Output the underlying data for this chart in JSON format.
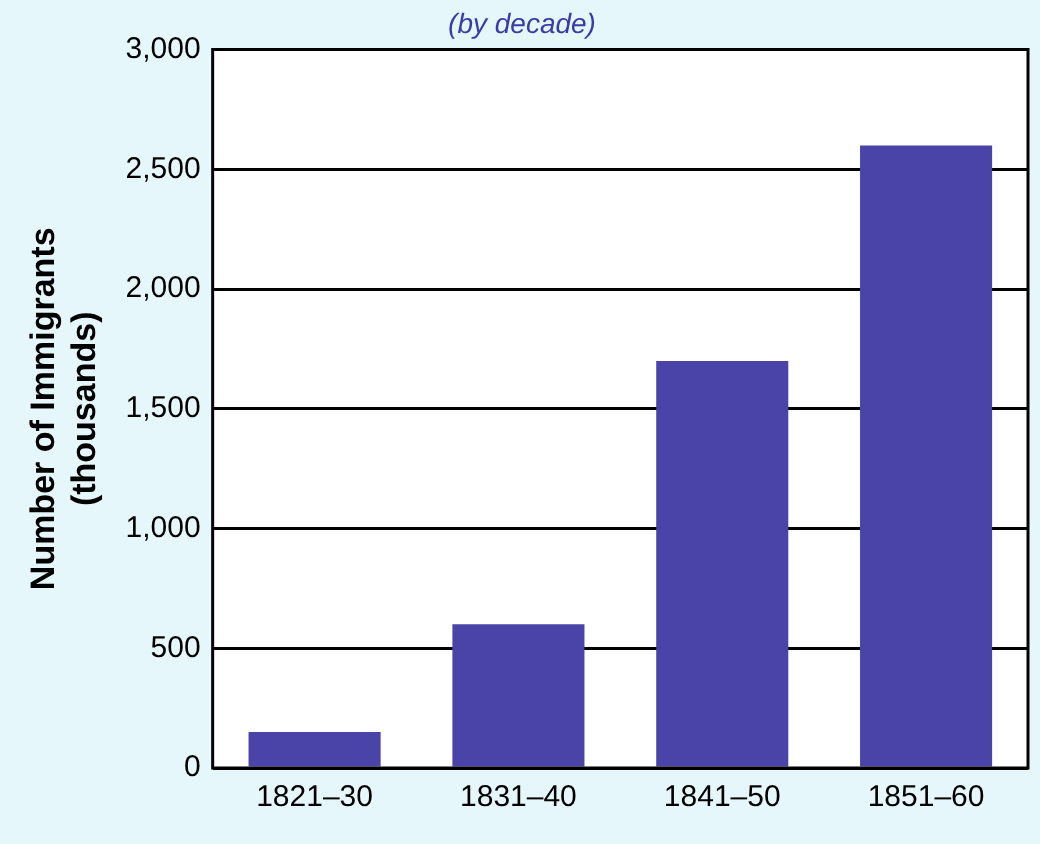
{
  "chart_data": {
    "type": "bar",
    "subtitle": "(by decade)",
    "ylabel": "Number of Immigrants\n(thousands)",
    "categories": [
      "1821–30",
      "1831–40",
      "1841–50",
      "1851–60"
    ],
    "values": [
      150,
      600,
      1700,
      2600
    ],
    "color": "#4a44a8",
    "ylim": [
      0,
      3000
    ],
    "yticks": [
      0,
      500,
      {
        "value": 1000,
        "label": "1,000"
      },
      {
        "value": 1500,
        "label": "1,500"
      },
      {
        "value": 2000,
        "label": "2,000"
      },
      {
        "value": 2500,
        "label": "2,500"
      },
      {
        "value": 3000,
        "label": "3,000"
      }
    ],
    "grid": "y",
    "legend": false
  }
}
